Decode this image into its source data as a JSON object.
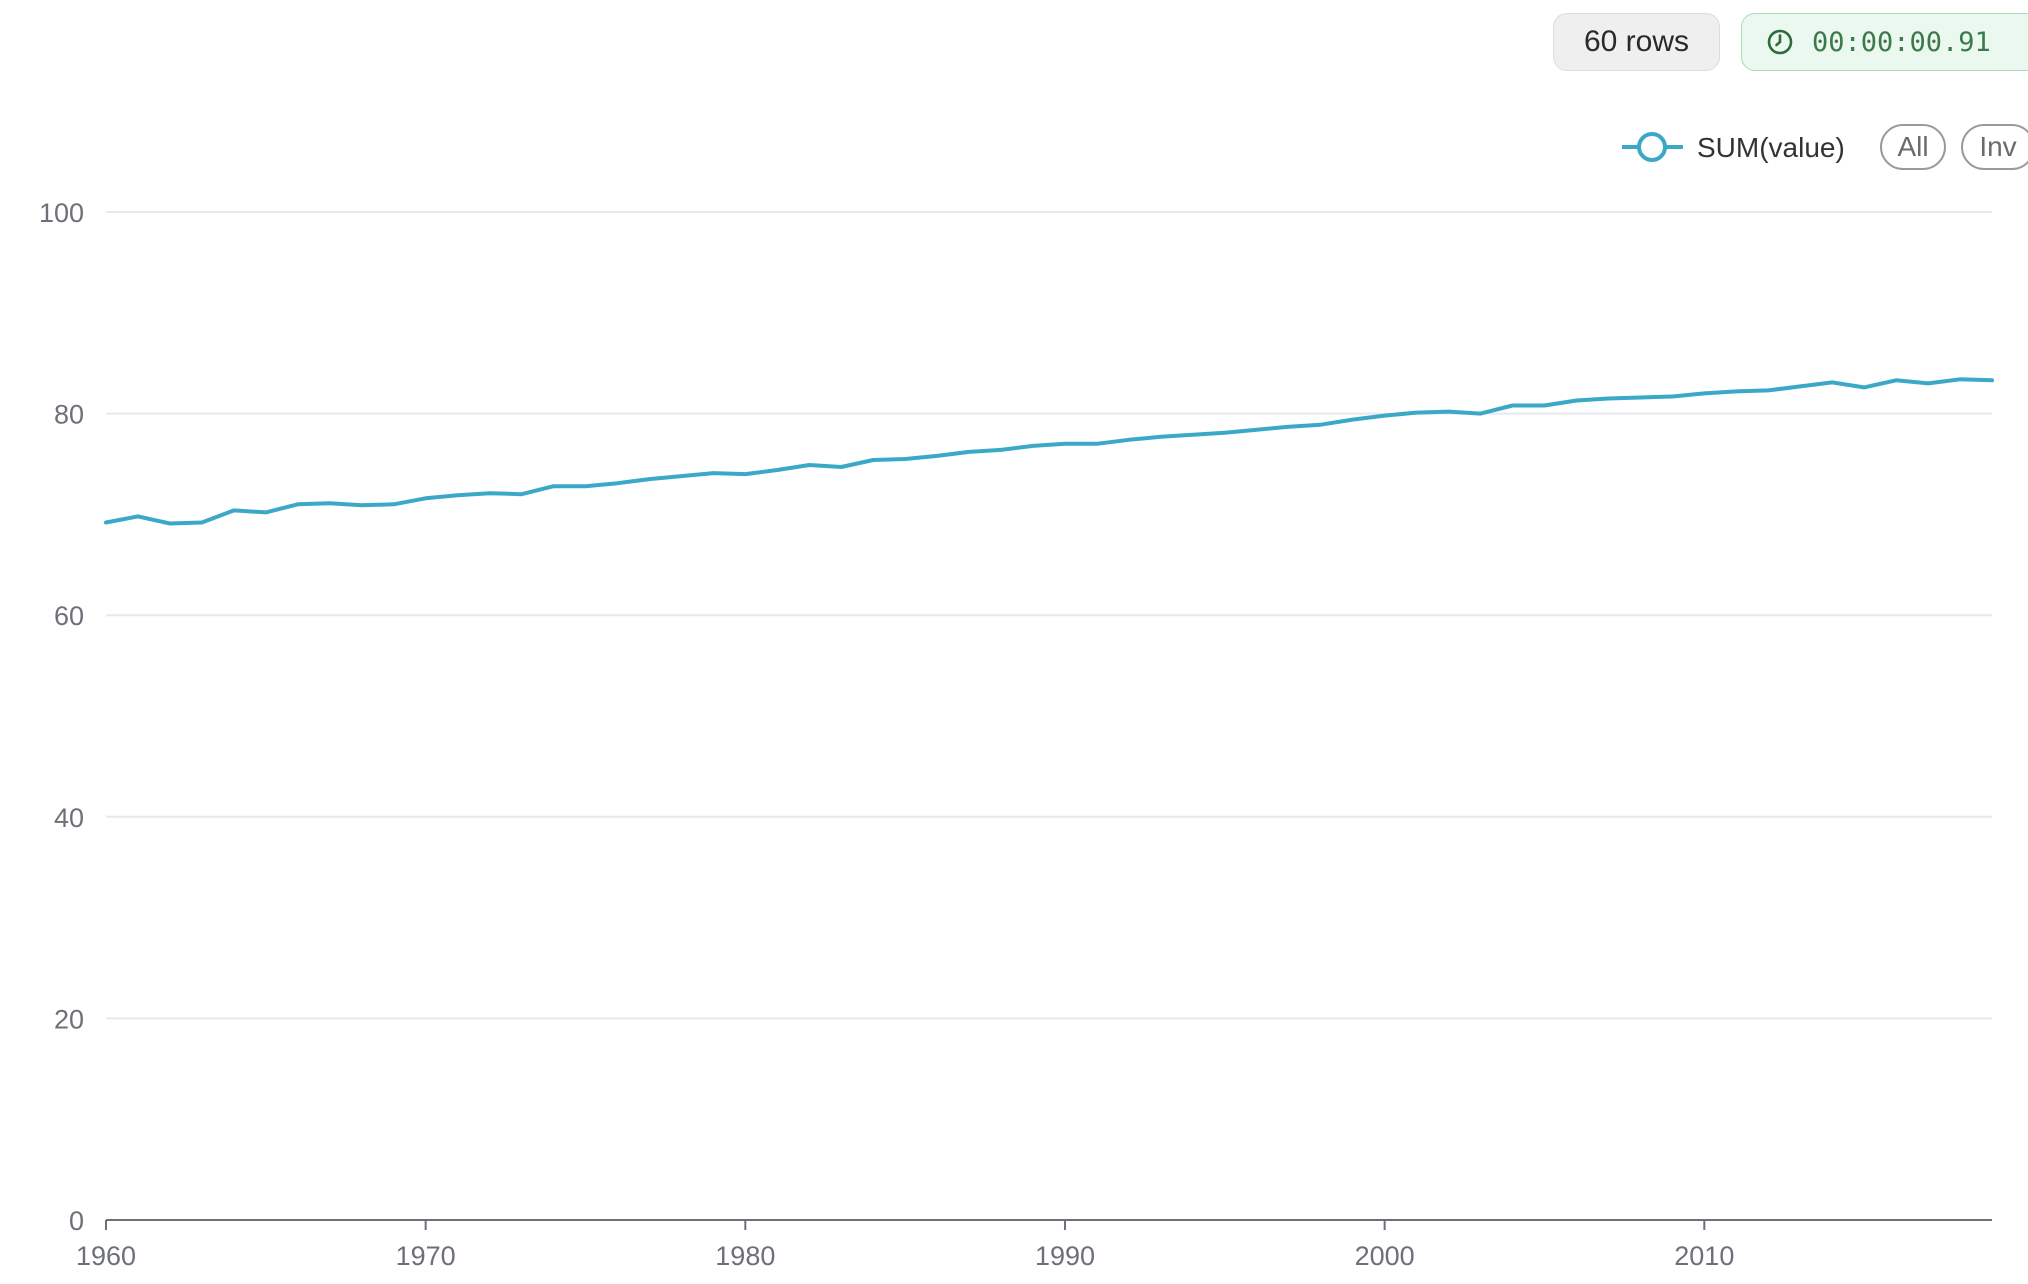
{
  "status": {
    "rows_label": "60 rows",
    "timer": "00:00:00.91"
  },
  "legend": {
    "series_label": "SUM(value)",
    "all_label": "All",
    "inv_label": "Inv"
  },
  "colors": {
    "series": "#3ba8c8",
    "grid": "#e6e8f2",
    "axis": "#6e7079",
    "tick_text": "#6e7079"
  },
  "chart_data": {
    "type": "line",
    "title": "",
    "xlabel": "",
    "ylabel": "",
    "grid": true,
    "legend_position": "top-right",
    "xlim": [
      1960,
      2019
    ],
    "ylim": [
      0,
      100
    ],
    "x_ticks": [
      1960,
      1970,
      1980,
      1990,
      2000,
      2010
    ],
    "y_ticks": [
      0,
      20,
      40,
      60,
      80,
      100
    ],
    "series": [
      {
        "name": "SUM(value)",
        "x": [
          1960,
          1961,
          1962,
          1963,
          1964,
          1965,
          1966,
          1967,
          1968,
          1969,
          1970,
          1971,
          1972,
          1973,
          1974,
          1975,
          1976,
          1977,
          1978,
          1979,
          1980,
          1981,
          1982,
          1983,
          1984,
          1985,
          1986,
          1987,
          1988,
          1989,
          1990,
          1991,
          1992,
          1993,
          1994,
          1995,
          1996,
          1997,
          1998,
          1999,
          2000,
          2001,
          2002,
          2003,
          2004,
          2005,
          2006,
          2007,
          2008,
          2009,
          2010,
          2011,
          2012,
          2013,
          2014,
          2015,
          2016,
          2017,
          2018,
          2019
        ],
        "values": [
          69.2,
          69.8,
          69.1,
          69.2,
          70.4,
          70.2,
          71.0,
          71.1,
          70.9,
          71.0,
          71.6,
          71.9,
          72.1,
          72.0,
          72.8,
          72.8,
          73.1,
          73.5,
          73.8,
          74.1,
          74.0,
          74.4,
          74.9,
          74.7,
          75.4,
          75.5,
          75.8,
          76.2,
          76.4,
          76.8,
          77.0,
          77.0,
          77.4,
          77.7,
          77.9,
          78.1,
          78.4,
          78.7,
          78.9,
          79.4,
          79.8,
          80.1,
          80.2,
          80.0,
          80.8,
          80.8,
          81.3,
          81.5,
          81.6,
          81.7,
          82.0,
          82.2,
          82.3,
          82.7,
          83.1,
          82.6,
          83.3,
          83.0,
          83.4,
          83.3
        ]
      }
    ]
  }
}
